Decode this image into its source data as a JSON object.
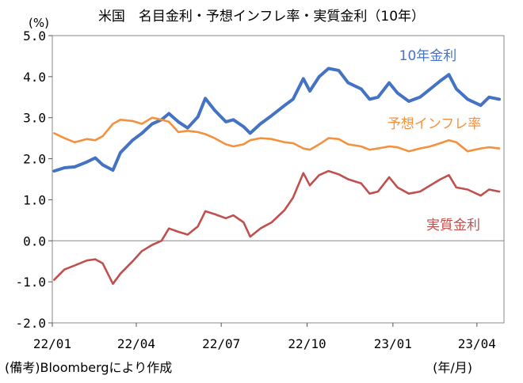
{
  "chart_data": {
    "type": "line",
    "title": "米国　名目金利・予想インフレ率・実質金利（10年）",
    "y_unit": "(%)",
    "ylim": [
      -2.0,
      5.0
    ],
    "yticks": [
      "5.0",
      "4.0",
      "3.0",
      "2.0",
      "1.0",
      "0.0",
      "-1.0",
      "-2.0"
    ],
    "x_range": [
      "2022-01-01",
      "2023-04-30"
    ],
    "xticks": [
      {
        "label": "22/01",
        "date": "2022-01-01"
      },
      {
        "label": "22/04",
        "date": "2022-04-01"
      },
      {
        "label": "22/07",
        "date": "2022-07-01"
      },
      {
        "label": "22/10",
        "date": "2022-10-01"
      },
      {
        "label": "23/01",
        "date": "2023-01-01"
      },
      {
        "label": "23/04",
        "date": "2023-04-01"
      }
    ],
    "grid": false,
    "zero_line": true,
    "series": [
      {
        "name": "10年金利",
        "color": "#4472c4",
        "points": [
          [
            "2022-01-03",
            1.7
          ],
          [
            "2022-01-14",
            1.78
          ],
          [
            "2022-01-25",
            1.8
          ],
          [
            "2022-02-07",
            1.92
          ],
          [
            "2022-02-16",
            2.02
          ],
          [
            "2022-02-24",
            1.85
          ],
          [
            "2022-03-07",
            1.72
          ],
          [
            "2022-03-15",
            2.15
          ],
          [
            "2022-03-28",
            2.45
          ],
          [
            "2022-04-07",
            2.62
          ],
          [
            "2022-04-18",
            2.85
          ],
          [
            "2022-04-28",
            2.95
          ],
          [
            "2022-05-06",
            3.1
          ],
          [
            "2022-05-16",
            2.9
          ],
          [
            "2022-05-26",
            2.75
          ],
          [
            "2022-06-06",
            3.02
          ],
          [
            "2022-06-14",
            3.47
          ],
          [
            "2022-06-24",
            3.18
          ],
          [
            "2022-07-06",
            2.9
          ],
          [
            "2022-07-14",
            2.95
          ],
          [
            "2022-07-25",
            2.78
          ],
          [
            "2022-08-01",
            2.62
          ],
          [
            "2022-08-12",
            2.85
          ],
          [
            "2022-08-24",
            3.05
          ],
          [
            "2022-09-07",
            3.3
          ],
          [
            "2022-09-16",
            3.45
          ],
          [
            "2022-09-27",
            3.95
          ],
          [
            "2022-10-04",
            3.65
          ],
          [
            "2022-10-14",
            4.0
          ],
          [
            "2022-10-24",
            4.2
          ],
          [
            "2022-11-04",
            4.15
          ],
          [
            "2022-11-14",
            3.85
          ],
          [
            "2022-11-28",
            3.7
          ],
          [
            "2022-12-07",
            3.45
          ],
          [
            "2022-12-16",
            3.5
          ],
          [
            "2022-12-28",
            3.85
          ],
          [
            "2023-01-06",
            3.6
          ],
          [
            "2023-01-18",
            3.4
          ],
          [
            "2023-01-30",
            3.5
          ],
          [
            "2023-02-10",
            3.7
          ],
          [
            "2023-02-21",
            3.9
          ],
          [
            "2023-03-02",
            4.05
          ],
          [
            "2023-03-10",
            3.7
          ],
          [
            "2023-03-22",
            3.45
          ],
          [
            "2023-04-05",
            3.3
          ],
          [
            "2023-04-14",
            3.5
          ],
          [
            "2023-04-25",
            3.45
          ]
        ]
      },
      {
        "name": "予想インフレ率",
        "color": "#f4913c",
        "points": [
          [
            "2022-01-03",
            2.62
          ],
          [
            "2022-01-14",
            2.5
          ],
          [
            "2022-01-25",
            2.4
          ],
          [
            "2022-02-07",
            2.48
          ],
          [
            "2022-02-16",
            2.45
          ],
          [
            "2022-02-24",
            2.55
          ],
          [
            "2022-03-07",
            2.85
          ],
          [
            "2022-03-15",
            2.95
          ],
          [
            "2022-03-28",
            2.92
          ],
          [
            "2022-04-07",
            2.85
          ],
          [
            "2022-04-18",
            3.0
          ],
          [
            "2022-04-28",
            2.95
          ],
          [
            "2022-05-06",
            2.9
          ],
          [
            "2022-05-16",
            2.65
          ],
          [
            "2022-05-26",
            2.68
          ],
          [
            "2022-06-06",
            2.65
          ],
          [
            "2022-06-14",
            2.6
          ],
          [
            "2022-06-24",
            2.5
          ],
          [
            "2022-07-06",
            2.35
          ],
          [
            "2022-07-14",
            2.3
          ],
          [
            "2022-07-25",
            2.35
          ],
          [
            "2022-08-01",
            2.45
          ],
          [
            "2022-08-12",
            2.5
          ],
          [
            "2022-08-24",
            2.48
          ],
          [
            "2022-09-07",
            2.4
          ],
          [
            "2022-09-16",
            2.38
          ],
          [
            "2022-09-27",
            2.25
          ],
          [
            "2022-10-04",
            2.22
          ],
          [
            "2022-10-14",
            2.35
          ],
          [
            "2022-10-24",
            2.5
          ],
          [
            "2022-11-04",
            2.48
          ],
          [
            "2022-11-14",
            2.35
          ],
          [
            "2022-11-28",
            2.3
          ],
          [
            "2022-12-07",
            2.22
          ],
          [
            "2022-12-16",
            2.25
          ],
          [
            "2022-12-28",
            2.3
          ],
          [
            "2023-01-06",
            2.28
          ],
          [
            "2023-01-18",
            2.18
          ],
          [
            "2023-01-30",
            2.25
          ],
          [
            "2023-02-10",
            2.3
          ],
          [
            "2023-02-21",
            2.38
          ],
          [
            "2023-03-02",
            2.45
          ],
          [
            "2023-03-10",
            2.4
          ],
          [
            "2023-03-22",
            2.18
          ],
          [
            "2023-04-05",
            2.25
          ],
          [
            "2023-04-14",
            2.28
          ],
          [
            "2023-04-25",
            2.25
          ]
        ]
      },
      {
        "name": "実質金利",
        "color": "#c0504d",
        "points": [
          [
            "2022-01-03",
            -0.95
          ],
          [
            "2022-01-14",
            -0.7
          ],
          [
            "2022-01-25",
            -0.6
          ],
          [
            "2022-02-07",
            -0.48
          ],
          [
            "2022-02-16",
            -0.45
          ],
          [
            "2022-02-24",
            -0.55
          ],
          [
            "2022-03-07",
            -1.05
          ],
          [
            "2022-03-15",
            -0.8
          ],
          [
            "2022-03-28",
            -0.5
          ],
          [
            "2022-04-07",
            -0.25
          ],
          [
            "2022-04-18",
            -0.1
          ],
          [
            "2022-04-28",
            0.0
          ],
          [
            "2022-05-06",
            0.3
          ],
          [
            "2022-05-16",
            0.22
          ],
          [
            "2022-05-26",
            0.15
          ],
          [
            "2022-06-06",
            0.35
          ],
          [
            "2022-06-14",
            0.72
          ],
          [
            "2022-06-24",
            0.65
          ],
          [
            "2022-07-06",
            0.55
          ],
          [
            "2022-07-14",
            0.62
          ],
          [
            "2022-07-25",
            0.45
          ],
          [
            "2022-08-01",
            0.1
          ],
          [
            "2022-08-12",
            0.3
          ],
          [
            "2022-08-24",
            0.45
          ],
          [
            "2022-09-07",
            0.75
          ],
          [
            "2022-09-16",
            1.05
          ],
          [
            "2022-09-27",
            1.65
          ],
          [
            "2022-10-04",
            1.35
          ],
          [
            "2022-10-14",
            1.6
          ],
          [
            "2022-10-24",
            1.7
          ],
          [
            "2022-11-04",
            1.62
          ],
          [
            "2022-11-14",
            1.5
          ],
          [
            "2022-11-28",
            1.4
          ],
          [
            "2022-12-07",
            1.15
          ],
          [
            "2022-12-16",
            1.2
          ],
          [
            "2022-12-28",
            1.55
          ],
          [
            "2023-01-06",
            1.3
          ],
          [
            "2023-01-18",
            1.15
          ],
          [
            "2023-01-30",
            1.2
          ],
          [
            "2023-02-10",
            1.35
          ],
          [
            "2023-02-21",
            1.5
          ],
          [
            "2023-03-02",
            1.6
          ],
          [
            "2023-03-10",
            1.3
          ],
          [
            "2023-03-22",
            1.25
          ],
          [
            "2023-04-05",
            1.1
          ],
          [
            "2023-04-14",
            1.25
          ],
          [
            "2023-04-25",
            1.2
          ]
        ]
      }
    ],
    "source_note": "(備考)Bloombergにより作成",
    "x_unit": "(年/月)"
  }
}
